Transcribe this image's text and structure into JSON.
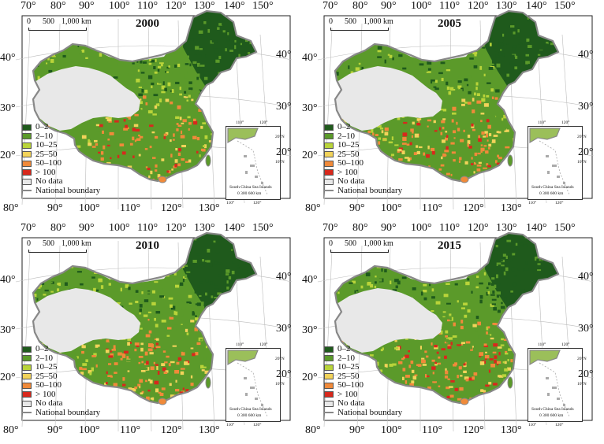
{
  "panels": [
    {
      "year": "2000"
    },
    {
      "year": "2005"
    },
    {
      "year": "2010"
    },
    {
      "year": "2015"
    }
  ],
  "top_ticks": [
    "70°",
    "80°",
    "90°",
    "100°",
    "110°",
    "120°",
    "130°",
    "140°",
    "150°"
  ],
  "bottom_ticks": [
    "80°",
    "90°",
    "100°",
    "110°",
    "120°",
    "130°"
  ],
  "left_ticks": [
    "40°",
    "30°",
    "20°"
  ],
  "right_ticks": [
    "40°",
    "30°",
    "20°"
  ],
  "scale_bar": {
    "zero": "0",
    "mid": "500",
    "end": "1,000 km"
  },
  "legend": [
    {
      "label": "0–2",
      "color": "#1f5a1c"
    },
    {
      "label": "2–10",
      "color": "#5b9a2a"
    },
    {
      "label": "10–25",
      "color": "#b9d43a"
    },
    {
      "label": "25–50",
      "color": "#f2d35a"
    },
    {
      "label": "50–100",
      "color": "#f08a3a"
    },
    {
      "label": "> 100",
      "color": "#d8281c"
    },
    {
      "label": "No data",
      "color": "#e8e8e8"
    },
    {
      "label": "National boundary",
      "color": "#888888"
    }
  ],
  "inset": {
    "lon_left": "110°",
    "lon_right": "120°",
    "lat_top": "20°N",
    "lat_bottom": "10°N",
    "caption": "South China Sea Islands",
    "scale": "0   300  600 km",
    "below_left": "110°",
    "below_right": "120°"
  }
}
